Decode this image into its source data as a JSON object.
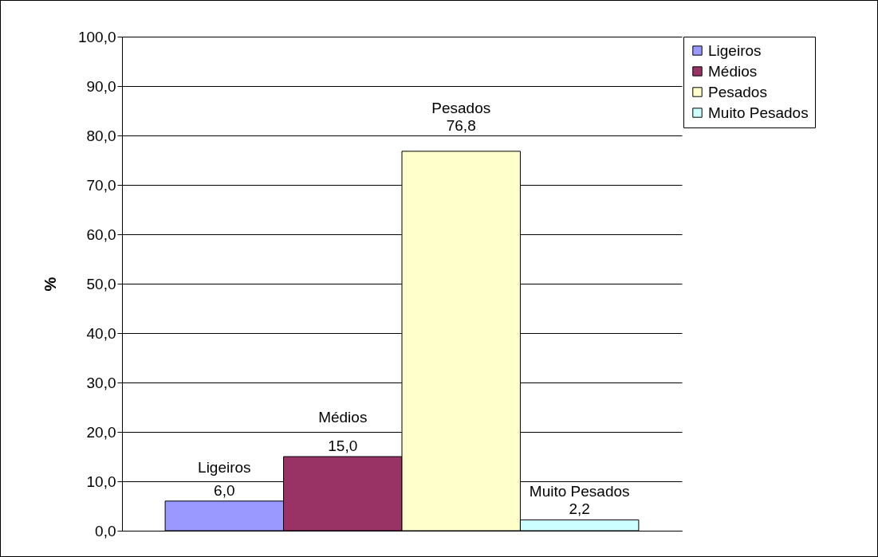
{
  "chart_data": {
    "type": "bar",
    "ylabel": "%",
    "categories": [
      null
    ],
    "series": [
      {
        "name": "Ligeiros",
        "color": "#9999ff",
        "values": [
          6.0
        ],
        "value_labels": [
          "6,0"
        ]
      },
      {
        "name": "Médios",
        "color": "#993366",
        "values": [
          15.0
        ],
        "value_labels": [
          "15,0"
        ]
      },
      {
        "name": "Pesados",
        "color": "#ffffcc",
        "values": [
          76.8
        ],
        "value_labels": [
          "76,8"
        ]
      },
      {
        "name": "Muito Pesados",
        "color": "#ccffff",
        "values": [
          2.2
        ],
        "value_labels": [
          "2,2"
        ]
      }
    ],
    "ylim": [
      0,
      100
    ],
    "yticks": [
      {
        "value": 0,
        "label": "0,0"
      },
      {
        "value": 10,
        "label": "10,0"
      },
      {
        "value": 20,
        "label": "20,0"
      },
      {
        "value": 30,
        "label": "30,0"
      },
      {
        "value": 40,
        "label": "40,0"
      },
      {
        "value": 50,
        "label": "50,0"
      },
      {
        "value": 60,
        "label": "60,0"
      },
      {
        "value": 70,
        "label": "70,0"
      },
      {
        "value": 80,
        "label": "80,0"
      },
      {
        "value": 90,
        "label": "90,0"
      },
      {
        "value": 100,
        "label": "100,0"
      }
    ],
    "grid": "y",
    "legend": "right",
    "tick_labels": "y"
  }
}
